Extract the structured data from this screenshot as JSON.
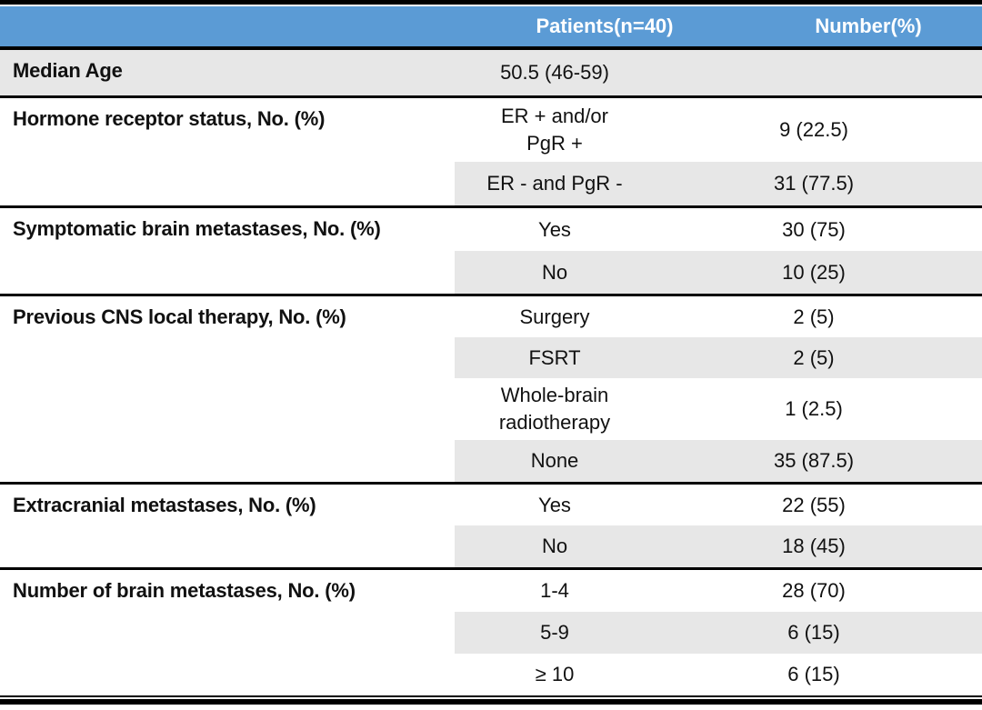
{
  "colors": {
    "header_bg": "#5B9BD5",
    "header_text": "#FFFFFF",
    "band": "#E7E7E7",
    "rule": "#000000"
  },
  "header": {
    "patients_label": "Patients(n=40)",
    "number_label": "Number(%)"
  },
  "sections": [
    {
      "label": "Median Age",
      "rows": [
        {
          "value": [
            "50.5 (46-59)"
          ],
          "number": ""
        }
      ]
    },
    {
      "label": "Hormone receptor status, No. (%)",
      "rows": [
        {
          "value": [
            "ER + and/or",
            "PgR +"
          ],
          "number": "9 (22.5)"
        },
        {
          "value": [
            "ER - and PgR -"
          ],
          "number": "31 (77.5)"
        }
      ]
    },
    {
      "label": "Symptomatic brain metastases, No. (%)",
      "rows": [
        {
          "value": [
            "Yes"
          ],
          "number": "30 (75)"
        },
        {
          "value": [
            "No"
          ],
          "number": "10 (25)"
        }
      ]
    },
    {
      "label": "Previous CNS local therapy, No. (%)",
      "rows": [
        {
          "value": [
            "Surgery"
          ],
          "number": "2 (5)"
        },
        {
          "value": [
            "FSRT"
          ],
          "number": "2 (5)"
        },
        {
          "value": [
            "Whole-brain",
            "radiotherapy"
          ],
          "number": "1 (2.5)"
        },
        {
          "value": [
            "None"
          ],
          "number": "35 (87.5)"
        }
      ]
    },
    {
      "label": "Extracranial metastases, No. (%)",
      "rows": [
        {
          "value": [
            "Yes"
          ],
          "number": "22 (55)"
        },
        {
          "value": [
            "No"
          ],
          "number": "18 (45)"
        }
      ]
    },
    {
      "label": "Number of brain metastases, No. (%)",
      "rows": [
        {
          "value": [
            "1-4"
          ],
          "number": "28 (70)"
        },
        {
          "value": [
            "5-9"
          ],
          "number": "6 (15)"
        },
        {
          "value": [
            "≥ 10"
          ],
          "number": "6 (15)"
        }
      ]
    }
  ]
}
